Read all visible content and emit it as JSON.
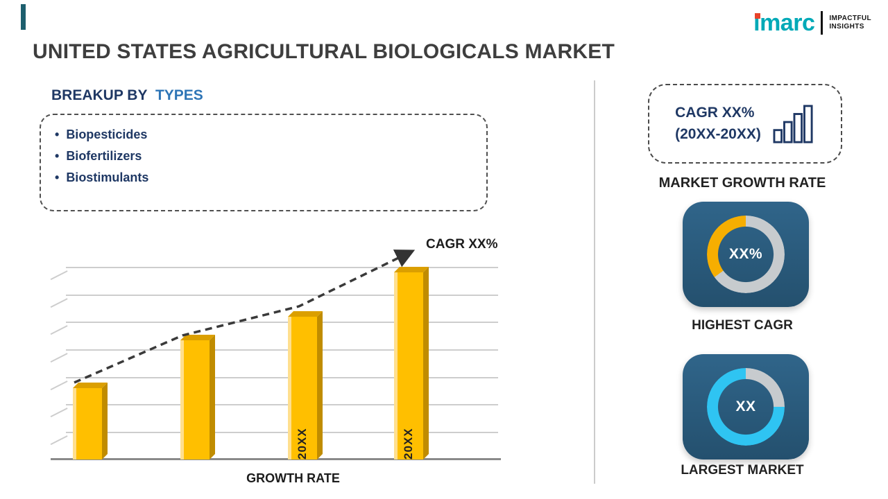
{
  "header": {
    "title": "UNITED STATES AGRICULTURAL BIOLOGICALS MARKET",
    "logo": {
      "brand": "imarc",
      "tagline_line1": "IMPACTFUL",
      "tagline_line2": "INSIGHTS"
    }
  },
  "breakup": {
    "bullet": "•",
    "heading_prefix": "BREAKUP BY",
    "heading_highlight": "TYPES",
    "items": [
      "Biopesticides",
      "Biofertilizers",
      "Biostimulants"
    ]
  },
  "right_panel": {
    "cagr_line1": "CAGR XX%",
    "cagr_line2": "(20XX-20XX)",
    "market_growth_rate_label": "MARKET GROWTH RATE"
  },
  "colors": {
    "accent_teal": "#00A9B7",
    "navy_text": "#1F3864",
    "blue_highlight": "#2E75B6",
    "bar_gold": "#FFBF00",
    "card_blue": "#2B5C7E",
    "donut_orange": "#F6AE01",
    "donut_cyan": "#2FC4F2",
    "donut_gray": "#C7CBCE"
  },
  "chart_data": [
    {
      "type": "bar",
      "title": "",
      "categories": [
        "",
        "",
        "20XX",
        "20XX"
      ],
      "values": [
        37,
        62,
        74,
        97
      ],
      "xlabel": "GROWTH RATE",
      "ylabel": "",
      "ylim": [
        0,
        100
      ],
      "grid": true,
      "annotation": "CAGR XX%",
      "trend": "rising-dashed-arrow"
    },
    {
      "type": "donut",
      "label": "HIGHEST CAGR",
      "center_text": "XX%",
      "highlight": {
        "name": "highest-cagr-share",
        "value_pct": 35,
        "color": "#F6AE01"
      },
      "remainder": {
        "name": "remainder",
        "value_pct": 65,
        "color": "#C7CBCE"
      }
    },
    {
      "type": "donut",
      "label": "LARGEST MARKET",
      "center_text": "XX",
      "highlight": {
        "name": "largest-market-share",
        "value_pct": 75,
        "color": "#2FC4F2"
      },
      "remainder": {
        "name": "remainder",
        "value_pct": 25,
        "color": "#C7CBCE"
      }
    }
  ]
}
